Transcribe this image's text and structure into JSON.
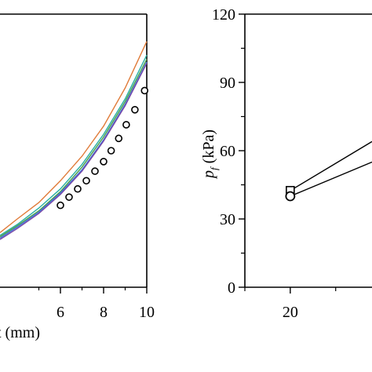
{
  "chart_data": [
    {
      "type": "line",
      "xlabel": "t (mm)",
      "ylabel": "",
      "xlim": [
        3.2,
        10
      ],
      "ylim": [
        0,
        1
      ],
      "x_ticks": [
        6,
        8,
        10
      ],
      "series": [
        {
          "color": "#e07b39",
          "x": [
            3.2,
            4,
            5,
            6,
            7,
            8,
            9,
            10
          ],
          "values": [
            0.2,
            0.25,
            0.31,
            0.39,
            0.48,
            0.59,
            0.73,
            0.9
          ]
        },
        {
          "color": "#2ab0a0",
          "x": [
            3.2,
            4,
            5,
            6,
            7,
            8,
            9,
            10
          ],
          "values": [
            0.19,
            0.23,
            0.29,
            0.36,
            0.45,
            0.56,
            0.69,
            0.85
          ]
        },
        {
          "color": "#4a9e4a",
          "x": [
            3.2,
            4,
            5,
            6,
            7,
            8,
            9,
            10
          ],
          "values": [
            0.185,
            0.225,
            0.28,
            0.35,
            0.44,
            0.55,
            0.68,
            0.835
          ]
        },
        {
          "color": "#3f6fd8",
          "x": [
            3.2,
            4,
            5,
            6,
            7,
            8,
            9,
            10
          ],
          "values": [
            0.18,
            0.22,
            0.275,
            0.345,
            0.43,
            0.54,
            0.67,
            0.825
          ]
        },
        {
          "color": "#7a4aa8",
          "x": [
            3.2,
            4,
            5,
            6,
            7,
            8,
            9,
            10
          ],
          "values": [
            0.175,
            0.215,
            0.27,
            0.34,
            0.425,
            0.535,
            0.665,
            0.82
          ]
        }
      ],
      "points": {
        "marker": "circle",
        "x": [
          6.0,
          6.4,
          6.8,
          7.2,
          7.6,
          8.0,
          8.35,
          8.7,
          9.05,
          9.45,
          9.9
        ],
        "values": [
          0.3,
          0.33,
          0.36,
          0.39,
          0.425,
          0.46,
          0.5,
          0.545,
          0.595,
          0.65,
          0.72
        ]
      }
    },
    {
      "type": "line",
      "xlabel": "",
      "ylabel": "p_f (kPa)",
      "ylim": [
        0,
        120
      ],
      "y_ticks": [
        0,
        30,
        60,
        90,
        120
      ],
      "x_ticks": [
        20
      ],
      "xlim": [
        15,
        29
      ],
      "series": [
        {
          "marker": "square",
          "x": [
            20,
            29
          ],
          "values": [
            42.5,
            64
          ]
        },
        {
          "marker": "circle",
          "x": [
            20,
            29
          ],
          "values": [
            40,
            55
          ]
        }
      ]
    }
  ]
}
